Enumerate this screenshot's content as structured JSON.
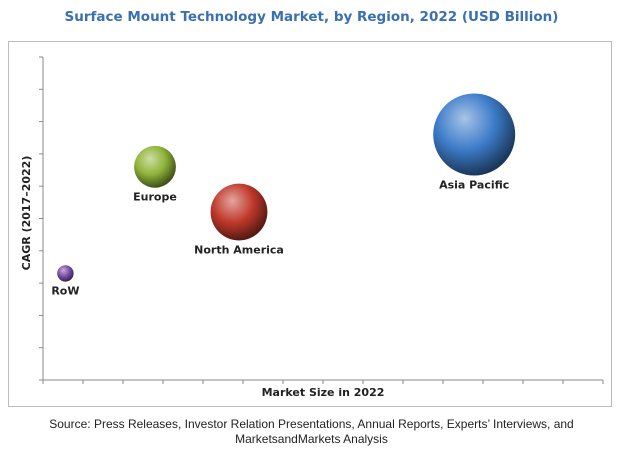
{
  "chart_data": {
    "type": "bubble",
    "title": "Surface Mount Technology Market, by Region, 2022 (USD Billion)",
    "xlabel": "Market Size in 2022",
    "ylabel": "CAGR (2017–2022)",
    "xlim": [
      0,
      100
    ],
    "ylim": [
      0,
      100
    ],
    "grid": false,
    "legend": "none",
    "points": [
      {
        "label": "RoW",
        "x": 4,
        "y": 33,
        "size": 2,
        "color": "#7b4fa8"
      },
      {
        "label": "Europe",
        "x": 20,
        "y": 66,
        "size": 13,
        "color": "#8fb43a"
      },
      {
        "label": "North America",
        "x": 35,
        "y": 52,
        "size": 24,
        "color": "#c0392b"
      },
      {
        "label": "Asia Pacific",
        "x": 77,
        "y": 76,
        "size": 50,
        "color": "#3d7cc9"
      }
    ]
  },
  "source_note": "Source: Press Releases, Investor Relation Presentations, Annual Reports, Experts’ Interviews, and MarketsandMarkets Analysis"
}
